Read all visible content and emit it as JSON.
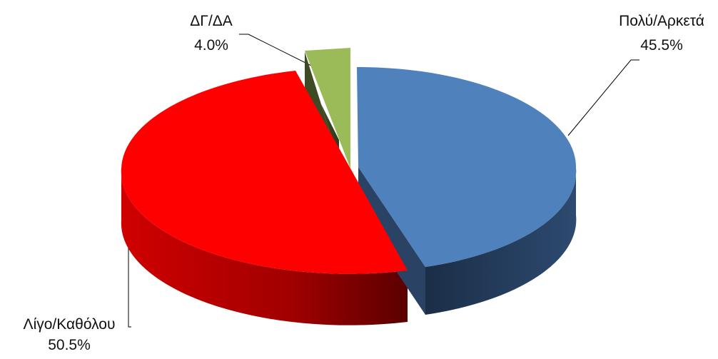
{
  "chart_data": {
    "type": "pie",
    "style": "3d-exploded",
    "title": "",
    "slices": [
      {
        "label": "Πολύ/Αρκετά",
        "value": 45.5,
        "value_label": "45.5%",
        "color": "#4F81BD",
        "side_color": "#1F3552"
      },
      {
        "label": "Λίγο/Καθόλου",
        "value": 50.5,
        "value_label": "50.5%",
        "color": "#FF0000",
        "side_color": "#8B0000"
      },
      {
        "label": "ΔΓ/ΔΑ",
        "value": 4.0,
        "value_label": "4.0%",
        "color": "#9BBB59",
        "side_color": "#3E4A24"
      }
    ]
  }
}
